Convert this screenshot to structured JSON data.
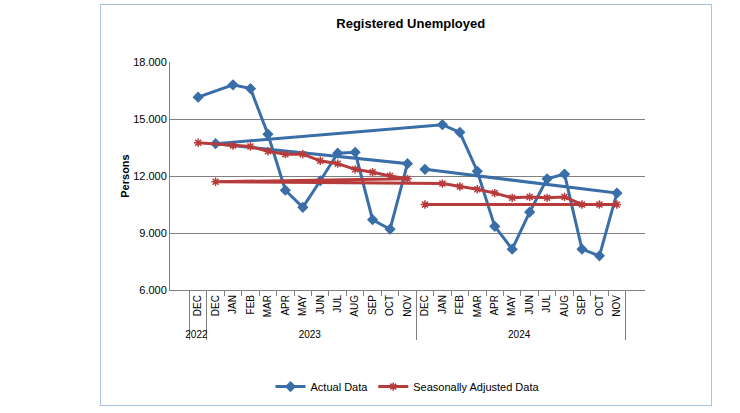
{
  "chart_data": {
    "type": "line",
    "title": "Registered Unemployed",
    "y_label": "Persons",
    "categories": [
      "DEC",
      "JAN",
      "FEB",
      "MAR",
      "APR",
      "MAY",
      "JUN",
      "JUL",
      "AUG",
      "SEP",
      "OCT",
      "NOV",
      "DEC",
      "JAN",
      "FEB",
      "MAR",
      "APR",
      "MAY",
      "JUN",
      "JUL",
      "AUG",
      "SEP",
      "OCT",
      "NOV",
      "DEC"
    ],
    "years": [
      "2022",
      "2023",
      "2023",
      "2023",
      "2023",
      "2023",
      "2023",
      "2023",
      "2023",
      "2023",
      "2023",
      "2023",
      "2023",
      "2024",
      "2024",
      "2024",
      "2024",
      "2024",
      "2024",
      "2024",
      "2024",
      "2024",
      "2024",
      "2024",
      "2024"
    ],
    "series": [
      {
        "name": "Actual Data",
        "color": "#3a6ea8",
        "marker": "diamond",
        "values": [
          16150,
          16800,
          16600,
          14200,
          11250,
          10350,
          11750,
          13200,
          13250,
          9700,
          9200,
          12650,
          13700,
          14700,
          14300,
          12250,
          9350,
          8150,
          10100,
          11850,
          12100,
          8150,
          7800,
          11100,
          12350
        ]
      },
      {
        "name": "Seasonally Adjusted Data",
        "color": "#b83b3b",
        "marker": "asterisk",
        "values": [
          13750,
          13600,
          13550,
          13300,
          13150,
          13150,
          12800,
          12650,
          12350,
          12200,
          12000,
          11850,
          11700,
          11600,
          11450,
          11300,
          11100,
          10850,
          10900,
          10850,
          10900,
          10500,
          10500,
          10500,
          10500
        ]
      }
    ],
    "ylim": [
      6000,
      18000
    ],
    "yticks": [
      {
        "value": 6000,
        "label": "6.000"
      },
      {
        "value": 9000,
        "label": "9.000"
      },
      {
        "value": 12000,
        "label": "12.000"
      },
      {
        "value": 15000,
        "label": "15.000"
      },
      {
        "value": 18000,
        "label": "18.000"
      }
    ],
    "grid": true,
    "legend": "bottom"
  }
}
